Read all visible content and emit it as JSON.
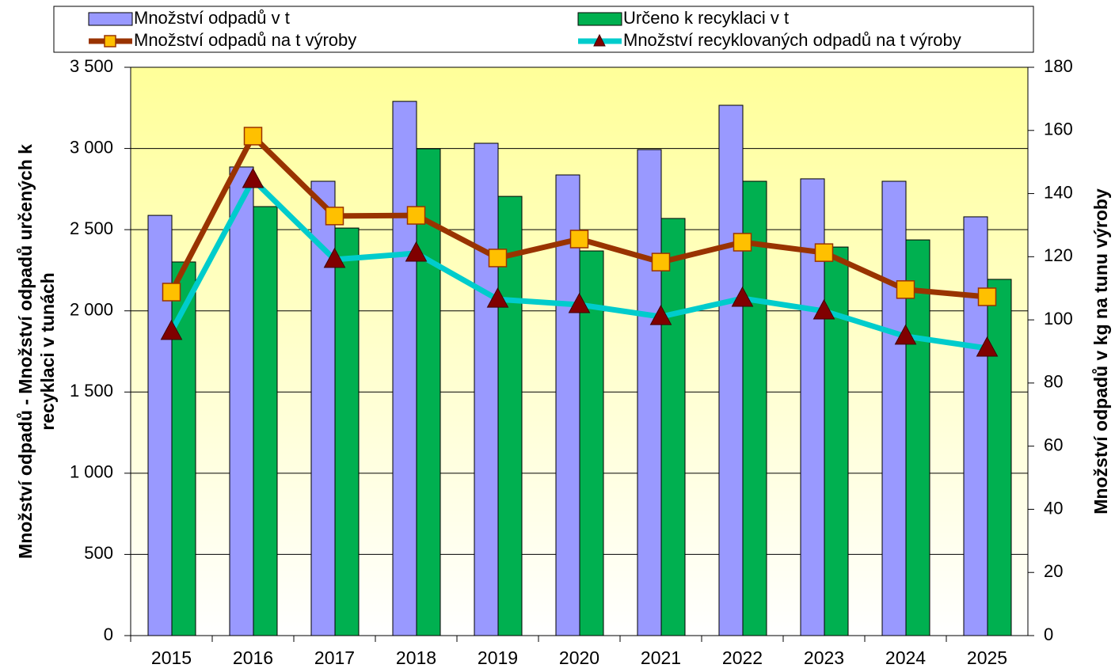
{
  "chart_data": {
    "type": "bar-line",
    "categories": [
      "2015",
      "2016",
      "2017",
      "2018",
      "2019",
      "2020",
      "2021",
      "2022",
      "2023",
      "2024",
      "2025"
    ],
    "series": [
      {
        "name": "Množství odpadů v t",
        "type": "bar",
        "color": "#9999ff",
        "values": [
          2588,
          2886,
          2798,
          3290,
          3032,
          2837,
          2993,
          3266,
          2813,
          2798,
          2579
        ]
      },
      {
        "name": "Určeno k recyklaci v t",
        "type": "bar",
        "color": "#00b050",
        "values": [
          2301,
          2642,
          2510,
          2998,
          2705,
          2369,
          2569,
          2798,
          2393,
          2437,
          2194
        ]
      },
      {
        "name": "Množství odpadů na t výroby",
        "type": "line",
        "axis": "y2",
        "color": "#993300",
        "marker_color": "#ffc000",
        "marker": "square",
        "values": [
          108.8,
          158.2,
          132.9,
          133.1,
          119.6,
          125.6,
          118.3,
          124.6,
          121.3,
          109.6,
          107.3
        ]
      },
      {
        "name": "Množství recyklovaných odpadů na t výroby",
        "type": "line",
        "axis": "y2",
        "color": "#00cccc",
        "marker_color": "#800000",
        "marker": "triangle",
        "values": [
          96.3,
          144.4,
          119.1,
          121.1,
          106.5,
          104.8,
          101.0,
          106.8,
          102.8,
          94.8,
          91.0
        ]
      }
    ],
    "ylabel": [
      "Množství odpadů - Množství odpadů určených k",
      "recyklaci v tunách"
    ],
    "y2label": "Množství odpadů v kg na tunu výroby",
    "ylim": [
      0,
      3500
    ],
    "yticks": [
      0,
      500,
      {
        "value": 1000,
        "label": "1 000"
      },
      {
        "value": 1500,
        "label": "1 500"
      },
      {
        "value": 2000,
        "label": "2 000"
      },
      {
        "value": 2500,
        "label": "2 500"
      },
      {
        "value": 3000,
        "label": "3 000"
      },
      {
        "value": 3500,
        "label": "3 500"
      }
    ],
    "y2lim": [
      0,
      180
    ],
    "y2ticks": [
      0,
      20,
      40,
      60,
      80,
      100,
      120,
      140,
      160,
      180
    ],
    "grid": true,
    "legend": "top"
  }
}
